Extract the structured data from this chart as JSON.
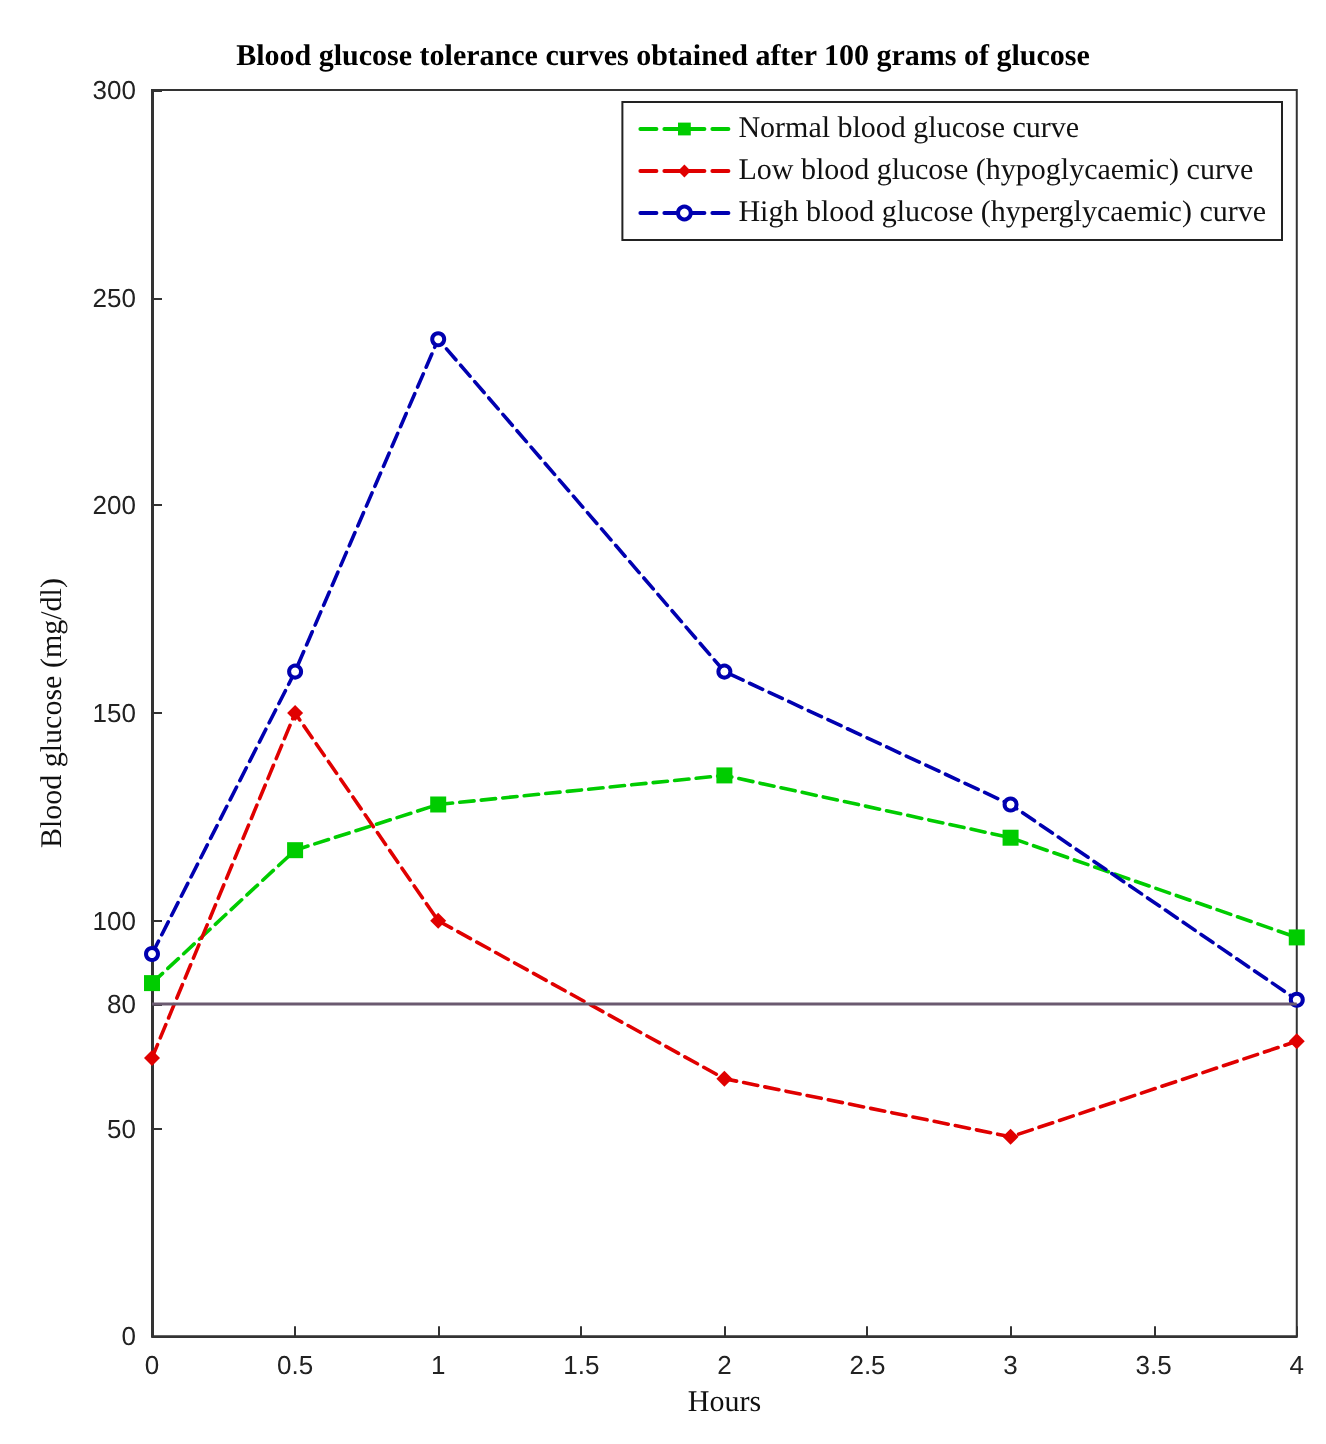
{
  "chart_data": {
    "type": "line",
    "title": "Blood glucose tolerance curves obtained after 100 grams of glucose",
    "xlabel": "Hours",
    "ylabel": "Blood glucose (mg/dl)",
    "x": [
      0,
      0.5,
      1,
      2,
      3,
      4
    ],
    "series": [
      {
        "name": "Normal blood glucose curve",
        "color": "#00cc00",
        "marker": "square",
        "values": [
          85,
          117,
          128,
          135,
          120,
          96
        ]
      },
      {
        "name": "Low blood glucose (hypoglycaemic) curve",
        "color": "#e00000",
        "marker": "diamond",
        "values": [
          67,
          150,
          100,
          62,
          48,
          71
        ]
      },
      {
        "name": "High blood glucose (hyperglycaemic) curve",
        "color": "#0000b0",
        "marker": "circle",
        "values": [
          92,
          160,
          240,
          160,
          128,
          81
        ]
      }
    ],
    "xlim": [
      0,
      4
    ],
    "xticks": [
      0,
      0.5,
      1,
      1.5,
      2,
      2.5,
      3,
      3.5,
      4
    ],
    "ylim": [
      0,
      300
    ],
    "yticks": [
      0,
      50,
      80,
      100,
      150,
      200,
      250,
      300
    ],
    "ref_lines": [
      {
        "axis": "y",
        "value": 80,
        "color": "#6b5a70",
        "line_style": "solid"
      }
    ],
    "line_style": "dashed",
    "legend": "top right",
    "grid": false
  }
}
